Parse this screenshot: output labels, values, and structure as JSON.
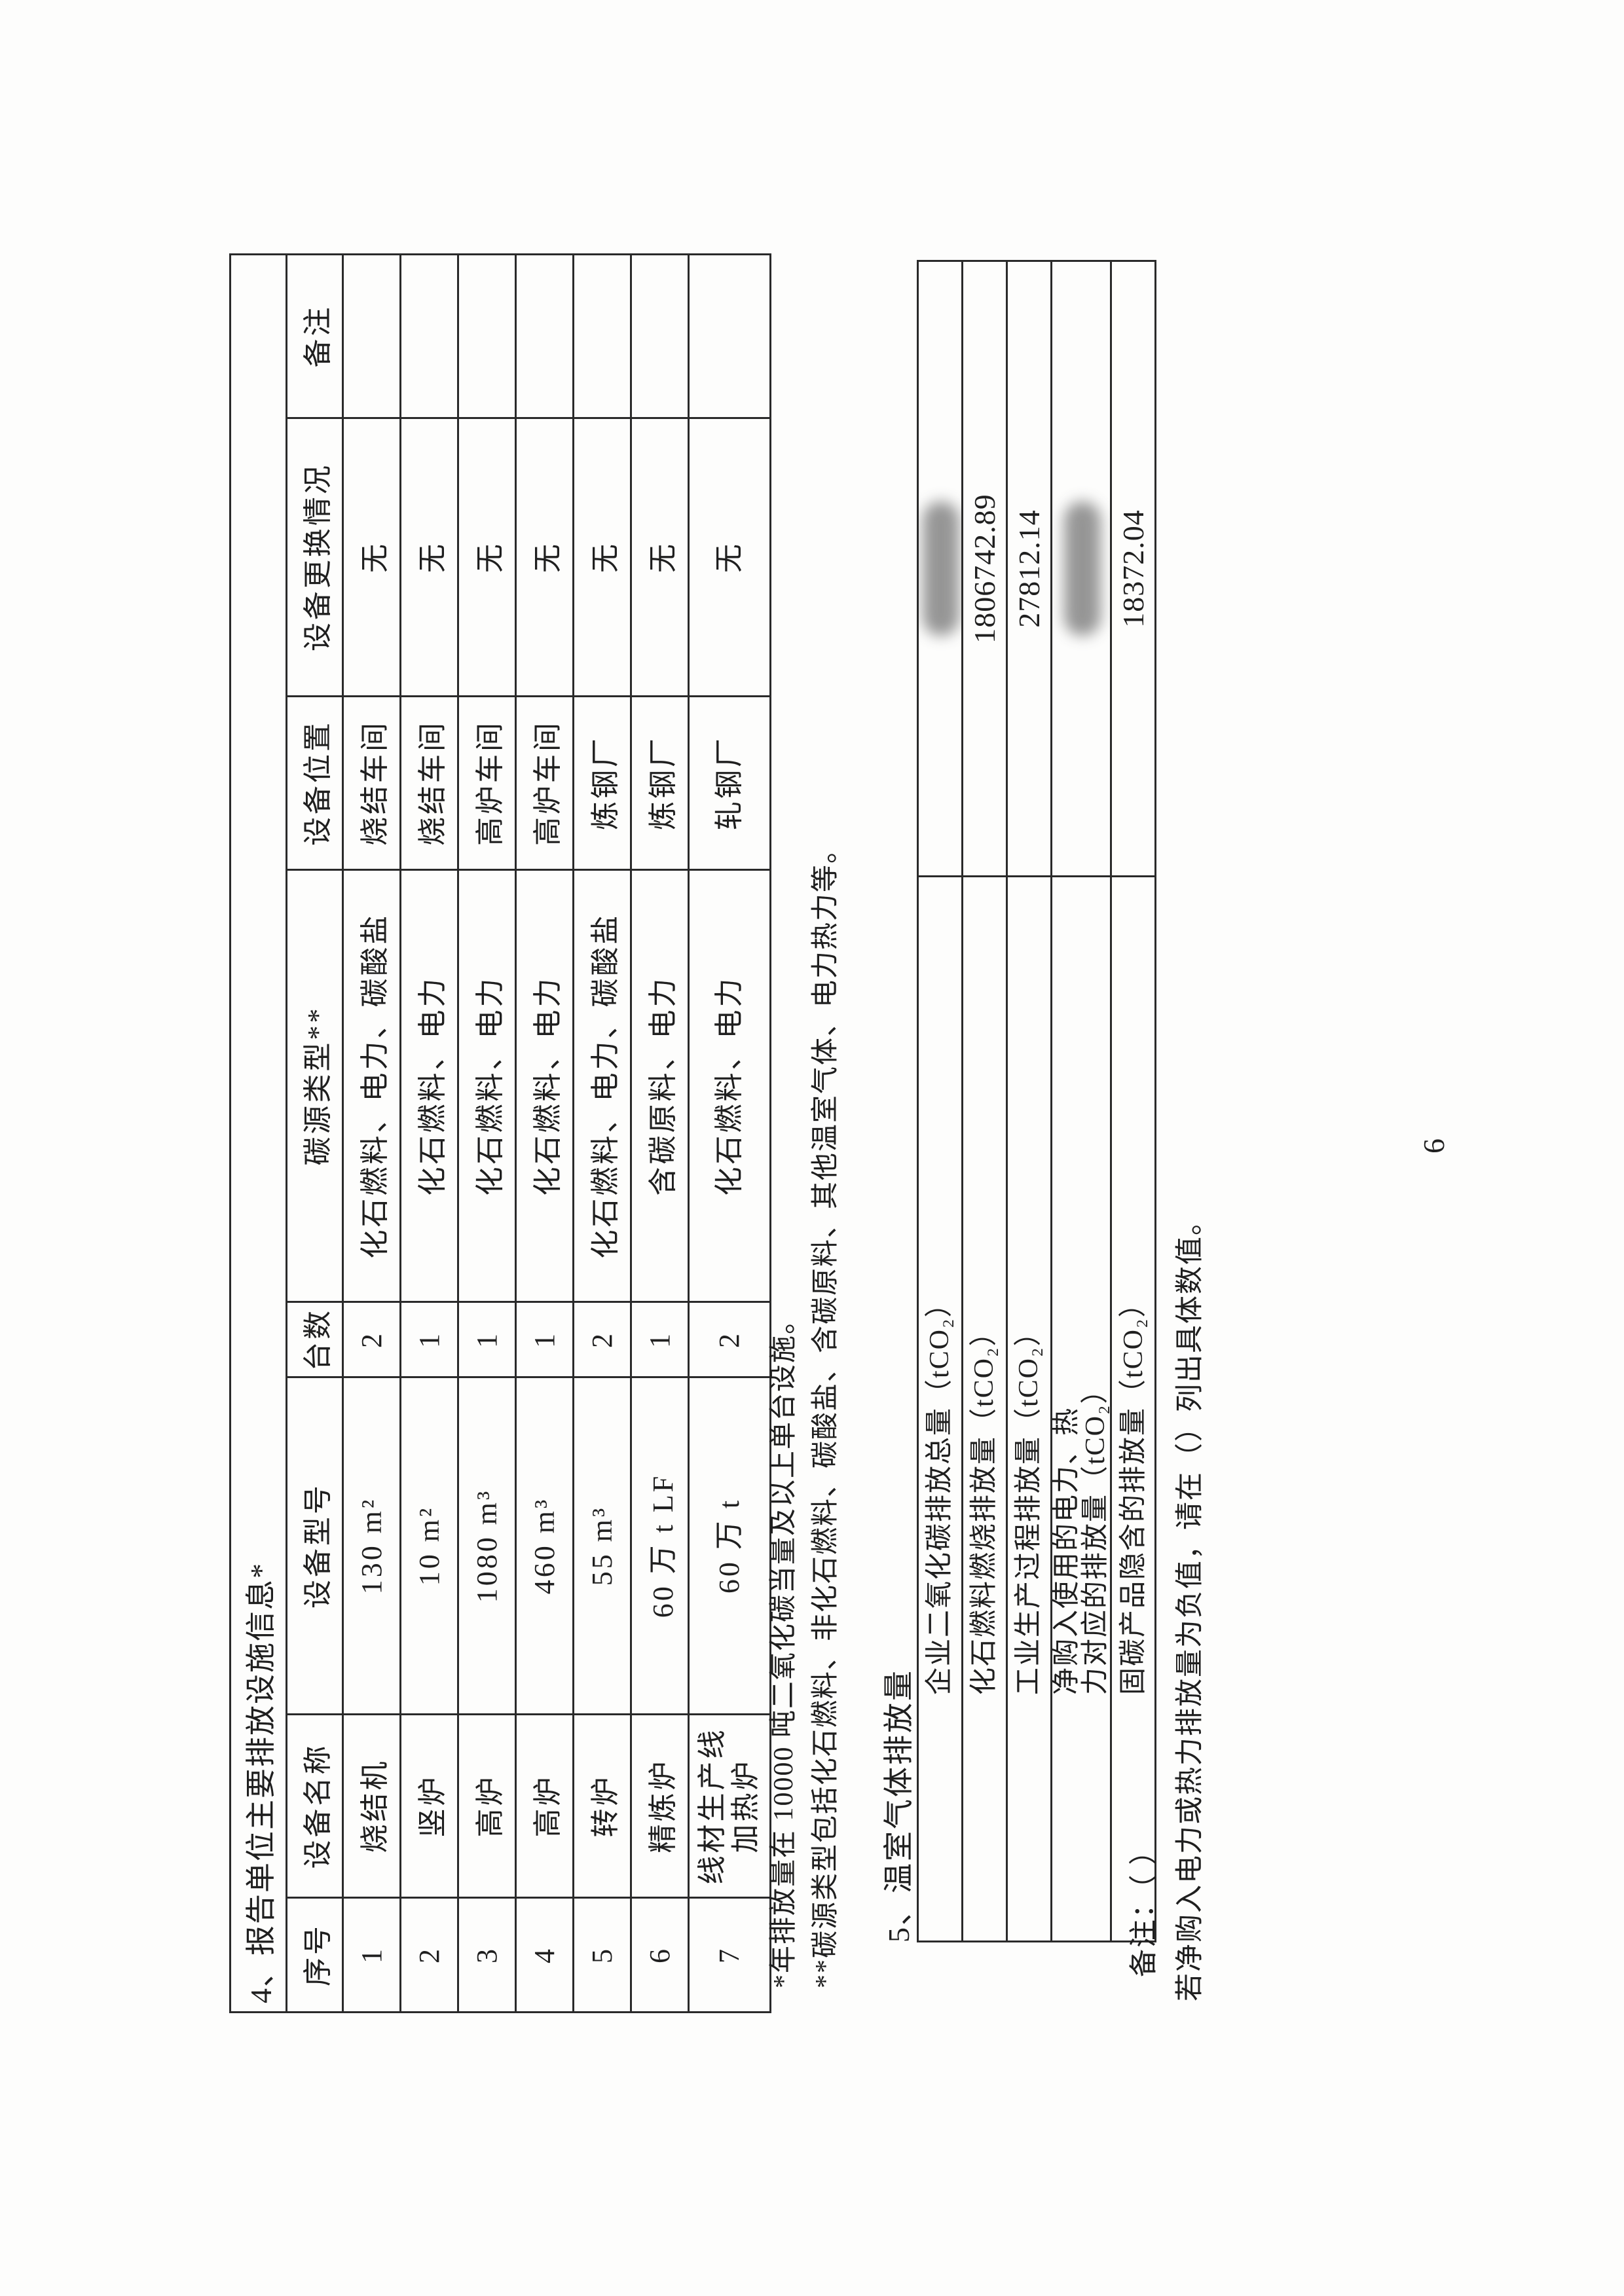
{
  "page": {
    "number": "6"
  },
  "section4": {
    "title": "4、报告单位主要排放设施信息*",
    "table": {
      "headers": [
        "序号",
        "设备名称",
        "设备型号",
        "台数",
        "碳源类型**",
        "设备位置",
        "设备更换情况",
        "备注"
      ],
      "rows": [
        {
          "no": "1",
          "name": "烧结机",
          "model": "130 m²",
          "count": "2",
          "carbon": "化石燃料、电力、碳酸盐",
          "location": "烧结车间",
          "replace": "无",
          "note": ""
        },
        {
          "no": "2",
          "name": "竖炉",
          "model": "10 m²",
          "count": "1",
          "carbon": "化石燃料、电力",
          "location": "烧结车间",
          "replace": "无",
          "note": ""
        },
        {
          "no": "3",
          "name": "高炉",
          "model": "1080 m³",
          "count": "1",
          "carbon": "化石燃料、电力",
          "location": "高炉车间",
          "replace": "无",
          "note": ""
        },
        {
          "no": "4",
          "name": "高炉",
          "model": "460 m³",
          "count": "1",
          "carbon": "化石燃料、电力",
          "location": "高炉车间",
          "replace": "无",
          "note": ""
        },
        {
          "no": "5",
          "name": "转炉",
          "model": "55 m³",
          "count": "2",
          "carbon": "化石燃料、电力、碳酸盐",
          "location": "炼钢厂",
          "replace": "无",
          "note": ""
        },
        {
          "no": "6",
          "name": "精炼炉",
          "model": "60 万 t LF",
          "count": "1",
          "carbon": "含碳原料、电力",
          "location": "炼钢厂",
          "replace": "无",
          "note": ""
        },
        {
          "no": "7",
          "name": "线材生产线\n加热炉",
          "model": "60 万 t",
          "count": "2",
          "carbon": "化石燃料、电力",
          "location": "轧钢厂",
          "replace": "无",
          "note": ""
        }
      ]
    },
    "footnotes": [
      "*年排放量在 10000 吨二氧化碳当量及以上单台设施。",
      "**碳源类型包括化石燃料、非化石燃料、碳酸盐、含碳原料、其他温室气体、电力热力等。"
    ]
  },
  "section5": {
    "heading": "5、温室气体排放量",
    "table": {
      "rows": [
        {
          "label": "企业二氧化碳排放总量（tCO₂）",
          "value": "",
          "redacted": true
        },
        {
          "label": "化石燃料燃烧排放量（tCO₂）",
          "value": "1806742.89",
          "redacted": false
        },
        {
          "label": "工业生产过程排放量（tCO₂）",
          "value": "27812.14",
          "redacted": false
        },
        {
          "label": "净购入使用的电力、热\n力对应的排放量（tCO₂）",
          "value": "",
          "redacted": true
        },
        {
          "label": "固碳产品隐含的排放量（tCO₂）",
          "value": "18372.04",
          "redacted": false
        }
      ]
    },
    "remark": "备注：（ ）",
    "remark_note": "若净购入电力或热力排放量为负值，请在（）列出具体数值。"
  }
}
